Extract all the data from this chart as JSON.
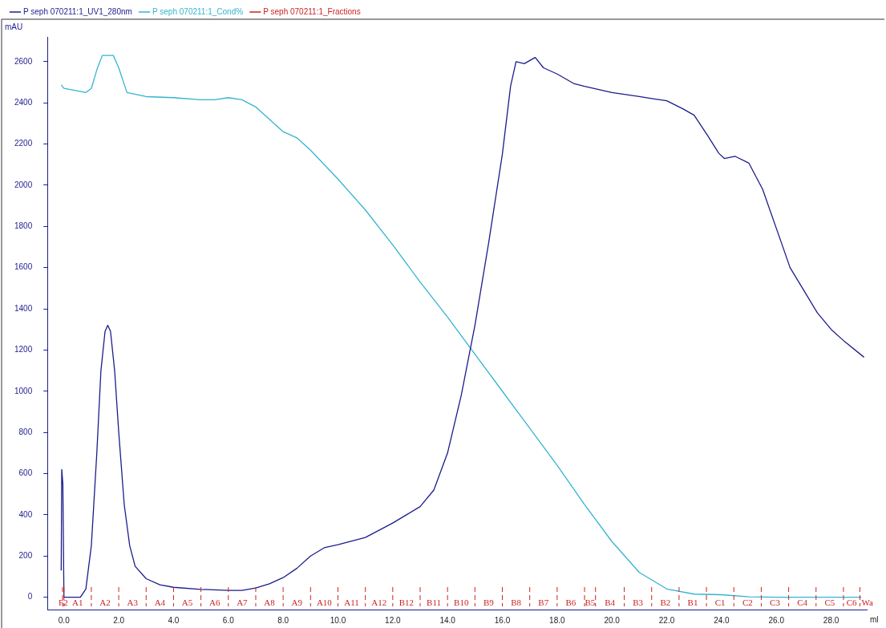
{
  "chart_data": {
    "type": "line",
    "xlabel": "ml",
    "ylabel": "mAU",
    "xlim": [
      -0.6,
      29.3
    ],
    "xticks": [
      {
        "value": 0,
        "label": "0.0"
      },
      {
        "value": 2,
        "label": "2.0"
      },
      {
        "value": 4,
        "label": "4.0"
      },
      {
        "value": 6,
        "label": "6.0"
      },
      {
        "value": 8,
        "label": "8.0"
      },
      {
        "value": 10,
        "label": "10.0"
      },
      {
        "value": 12,
        "label": "12.0"
      },
      {
        "value": 14,
        "label": "14.0"
      },
      {
        "value": 16,
        "label": "16.0"
      },
      {
        "value": 18,
        "label": "18.0"
      },
      {
        "value": 20,
        "label": "20.0"
      },
      {
        "value": 22,
        "label": "22.0"
      },
      {
        "value": 24,
        "label": "24.0"
      },
      {
        "value": 26,
        "label": "26.0"
      },
      {
        "value": 28,
        "label": "28.0"
      }
    ],
    "ylim": [
      -60,
      2720
    ],
    "yticks": [
      0,
      200,
      400,
      600,
      800,
      1000,
      1200,
      1400,
      1600,
      1800,
      2000,
      2200,
      2400,
      2600
    ],
    "grid": false,
    "legend": "top left",
    "marker": "none",
    "line_style": "solid",
    "series": [
      {
        "name": "P seph 070211:1_UV1_280nm",
        "color": "#1c1c8c",
        "x": [
          -0.1,
          -0.08,
          -0.06,
          -0.04,
          0,
          0.6,
          0.8,
          1.0,
          1.2,
          1.35,
          1.5,
          1.6,
          1.7,
          1.85,
          2.0,
          2.2,
          2.4,
          2.6,
          3.0,
          3.5,
          4.0,
          5.0,
          6.0,
          6.5,
          7.0,
          7.5,
          8.0,
          8.5,
          9.0,
          9.5,
          10.0,
          11.0,
          12.0,
          12.5,
          13.0,
          13.5,
          14.0,
          14.5,
          15.0,
          15.5,
          16.0,
          16.3,
          16.5,
          16.8,
          17.2,
          17.5,
          18.0,
          18.6,
          19.0,
          20.0,
          21.0,
          21.5,
          22.0,
          22.6,
          23.0,
          23.5,
          23.9,
          24.1,
          24.5,
          25.0,
          25.5,
          26.2,
          26.5,
          27.0,
          27.5,
          28.0,
          28.5,
          29.2
        ],
        "values": [
          130,
          620,
          620,
          550,
          0,
          0,
          40,
          250,
          700,
          1100,
          1290,
          1320,
          1290,
          1100,
          800,
          450,
          250,
          150,
          90,
          60,
          48,
          38,
          33,
          33,
          45,
          65,
          95,
          140,
          200,
          240,
          255,
          290,
          360,
          400,
          440,
          520,
          700,
          980,
          1320,
          1720,
          2150,
          2480,
          2600,
          2590,
          2620,
          2570,
          2540,
          2494,
          2480,
          2450,
          2430,
          2420,
          2410,
          2370,
          2340,
          2240,
          2155,
          2130,
          2140,
          2107,
          1980,
          1715,
          1600,
          1490,
          1380,
          1300,
          1240,
          1165
        ]
      },
      {
        "name": "P seph 070211:1_Cond%",
        "color": "#33b5d0",
        "x": [
          -0.1,
          0,
          0.8,
          1.0,
          1.2,
          1.4,
          1.8,
          2.0,
          2.3,
          3,
          4,
          5,
          5.5,
          6,
          6.5,
          7,
          7.5,
          8,
          8.5,
          9,
          10,
          11,
          12,
          13,
          14,
          15,
          16,
          17,
          18,
          19,
          20,
          21,
          22,
          23,
          24,
          25,
          26,
          28,
          29.1
        ],
        "values": [
          2487,
          2470,
          2450,
          2470,
          2560,
          2630,
          2630,
          2570,
          2450,
          2430,
          2425,
          2415,
          2415,
          2425,
          2415,
          2380,
          2320,
          2260,
          2230,
          2170,
          2030,
          1880,
          1710,
          1530,
          1360,
          1180,
          1000,
          820,
          640,
          450,
          270,
          120,
          40,
          15,
          12,
          2,
          0,
          0,
          0
        ]
      }
    ],
    "annotations": [
      "P seph 070211:1_Fractions"
    ],
    "ref_lines": [
      {
        "axis": "x",
        "value": -0.05,
        "label": "F2",
        "color": "#cc2222",
        "line_style": "dashed"
      },
      {
        "axis": "x",
        "value": 0.0,
        "label": "A1",
        "color": "#cc2222",
        "line_style": "dashed"
      },
      {
        "axis": "x",
        "value": 1.0,
        "label": "A2",
        "color": "#cc2222",
        "line_style": "dashed"
      },
      {
        "axis": "x",
        "value": 2.0,
        "label": "A3",
        "color": "#cc2222",
        "line_style": "dashed"
      },
      {
        "axis": "x",
        "value": 3.0,
        "label": "A4",
        "color": "#cc2222",
        "line_style": "dashed"
      },
      {
        "axis": "x",
        "value": 4.0,
        "label": "A5",
        "color": "#cc2222",
        "line_style": "dashed"
      },
      {
        "axis": "x",
        "value": 5.0,
        "label": "A6",
        "color": "#cc2222",
        "line_style": "dashed"
      },
      {
        "axis": "x",
        "value": 6.0,
        "label": "A7",
        "color": "#cc2222",
        "line_style": "dashed"
      },
      {
        "axis": "x",
        "value": 7.0,
        "label": "A8",
        "color": "#cc2222",
        "line_style": "dashed"
      },
      {
        "axis": "x",
        "value": 8.0,
        "label": "A9",
        "color": "#cc2222",
        "line_style": "dashed"
      },
      {
        "axis": "x",
        "value": 9.0,
        "label": "A10",
        "color": "#cc2222",
        "line_style": "dashed"
      },
      {
        "axis": "x",
        "value": 10.0,
        "label": "A11",
        "color": "#cc2222",
        "line_style": "dashed"
      },
      {
        "axis": "x",
        "value": 11.0,
        "label": "A12",
        "color": "#cc2222",
        "line_style": "dashed"
      },
      {
        "axis": "x",
        "value": 12.0,
        "label": "B12",
        "color": "#cc2222",
        "line_style": "dashed"
      },
      {
        "axis": "x",
        "value": 13.0,
        "label": "B11",
        "color": "#cc2222",
        "line_style": "dashed"
      },
      {
        "axis": "x",
        "value": 14.0,
        "label": "B10",
        "color": "#cc2222",
        "line_style": "dashed"
      },
      {
        "axis": "x",
        "value": 15.0,
        "label": "B9",
        "color": "#cc2222",
        "line_style": "dashed"
      },
      {
        "axis": "x",
        "value": 16.0,
        "label": "B8",
        "color": "#cc2222",
        "line_style": "dashed"
      },
      {
        "axis": "x",
        "value": 17.0,
        "label": "B7",
        "color": "#cc2222",
        "line_style": "dashed"
      },
      {
        "axis": "x",
        "value": 18.0,
        "label": "B6",
        "color": "#cc2222",
        "line_style": "dashed"
      },
      {
        "axis": "x",
        "value": 19.0,
        "label": "B5",
        "color": "#cc2222",
        "line_style": "dashed"
      },
      {
        "axis": "x",
        "value": 19.4,
        "label": "B4",
        "color": "#cc2222",
        "line_style": "dashed"
      },
      {
        "axis": "x",
        "value": 20.45,
        "label": "B3",
        "color": "#cc2222",
        "line_style": "dashed"
      },
      {
        "axis": "x",
        "value": 21.45,
        "label": "B2",
        "color": "#cc2222",
        "line_style": "dashed"
      },
      {
        "axis": "x",
        "value": 22.45,
        "label": "B1",
        "color": "#cc2222",
        "line_style": "dashed"
      },
      {
        "axis": "x",
        "value": 23.45,
        "label": "C1",
        "color": "#cc2222",
        "line_style": "dashed"
      },
      {
        "axis": "x",
        "value": 24.45,
        "label": "C2",
        "color": "#cc2222",
        "line_style": "dashed"
      },
      {
        "axis": "x",
        "value": 25.45,
        "label": "C3",
        "color": "#cc2222",
        "line_style": "dashed"
      },
      {
        "axis": "x",
        "value": 26.45,
        "label": "C4",
        "color": "#cc2222",
        "line_style": "dashed"
      },
      {
        "axis": "x",
        "value": 27.45,
        "label": "C5",
        "color": "#cc2222",
        "line_style": "dashed"
      },
      {
        "axis": "x",
        "value": 28.45,
        "label": "C6",
        "color": "#cc2222",
        "line_style": "dashed"
      },
      {
        "axis": "x",
        "value": 29.05,
        "label": "Wa",
        "color": "#cc2222",
        "line_style": "dashed"
      }
    ]
  }
}
